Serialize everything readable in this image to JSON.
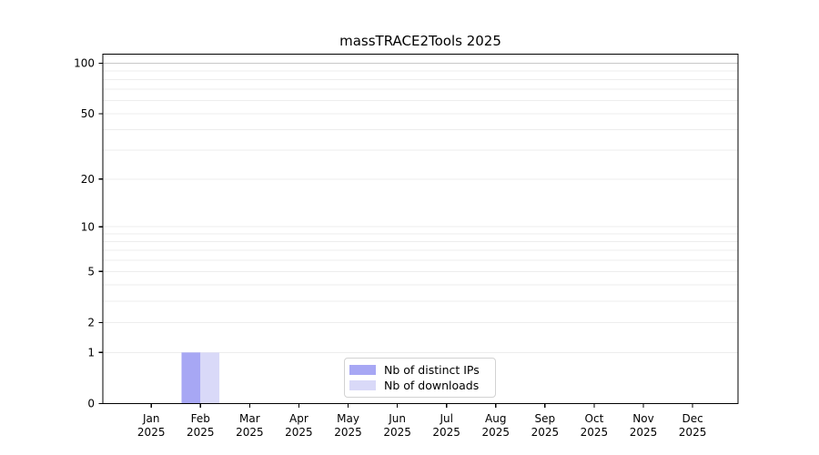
{
  "chart_data": {
    "type": "bar",
    "title": "massTRACE2Tools 2025",
    "categories": [
      "Jan 2025",
      "Feb 2025",
      "Mar 2025",
      "Apr 2025",
      "May 2025",
      "Jun 2025",
      "Jul 2025",
      "Aug 2025",
      "Sep 2025",
      "Oct 2025",
      "Nov 2025",
      "Dec 2025"
    ],
    "category_line1": [
      "Jan",
      "Feb",
      "Mar",
      "Apr",
      "May",
      "Jun",
      "Jul",
      "Aug",
      "Sep",
      "Oct",
      "Nov",
      "Dec"
    ],
    "category_line2": "2025",
    "series": [
      {
        "name": "Nb of distinct IPs",
        "color": "#a7a7f4",
        "values": [
          0,
          1,
          0,
          0,
          0,
          0,
          0,
          0,
          0,
          0,
          0,
          0
        ]
      },
      {
        "name": "Nb of downloads",
        "color": "#d9d9f8",
        "values": [
          0,
          1,
          0,
          0,
          0,
          0,
          0,
          0,
          0,
          0,
          0,
          0
        ]
      }
    ],
    "xlabel": "",
    "ylabel": "",
    "yscale": "log1p",
    "ylim": [
      0,
      100
    ],
    "yticks": [
      0,
      1,
      2,
      5,
      10,
      20,
      50,
      100
    ],
    "grid_values": [
      1,
      2,
      3,
      4,
      5,
      6,
      7,
      8,
      9,
      10,
      20,
      30,
      40,
      50,
      60,
      70,
      80,
      90,
      100
    ],
    "grid_on": true,
    "legend_position": "lower center",
    "colors": {
      "grid_minor": "#ededed",
      "grid_top": "#c9c9c9",
      "axis": "#000000",
      "background": "#ffffff"
    }
  }
}
